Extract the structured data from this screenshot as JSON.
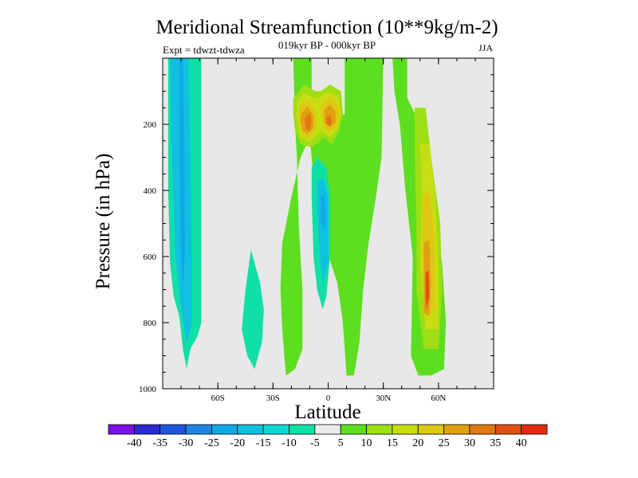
{
  "chart_data": {
    "type": "contour",
    "title": "Meridional Streamfunction (10**9kg/m-2)",
    "subtitle": "019kyr BP - 000kyr BP",
    "experiment": "Expt = tdwzt-tdwza",
    "season": "JJA",
    "xlabel": "Latitude",
    "ylabel": "Pressure (in hPa)",
    "xlim": [
      -90,
      90
    ],
    "ylim": [
      1000,
      0
    ],
    "x_ticks": [
      {
        "value": -60,
        "label": "60S"
      },
      {
        "value": -30,
        "label": "30S"
      },
      {
        "value": 0,
        "label": "0"
      },
      {
        "value": 30,
        "label": "30N"
      },
      {
        "value": 60,
        "label": "60N"
      }
    ],
    "y_ticks": [
      {
        "value": 200,
        "label": "200"
      },
      {
        "value": 400,
        "label": "400"
      },
      {
        "value": 600,
        "label": "600"
      },
      {
        "value": 800,
        "label": "800"
      },
      {
        "value": 1000,
        "label": "1000"
      }
    ],
    "background_color": "#e8e8e8",
    "colorbar": {
      "labels": [
        "-40",
        "-35",
        "-30",
        "-25",
        "-20",
        "-15",
        "-10",
        "-5",
        "5",
        "10",
        "15",
        "20",
        "25",
        "30",
        "35",
        "40"
      ],
      "colors": [
        "#7a12e8",
        "#2a2ad2",
        "#1f55e0",
        "#1f85e0",
        "#12a8e6",
        "#10c0e0",
        "#10d6d2",
        "#10e0a8",
        "#ececec",
        "#5ede20",
        "#9ede14",
        "#c8de12",
        "#e0c812",
        "#e0a012",
        "#e07812",
        "#e05012",
        "#e02a12"
      ]
    },
    "contours": [
      {
        "level": -10,
        "color": "#10e0a8",
        "points": [
          [
            -87,
            0
          ],
          [
            -69,
            0
          ],
          [
            -69,
            800
          ],
          [
            -71,
            840
          ],
          [
            -75,
            880
          ],
          [
            -77,
            940
          ],
          [
            -79,
            880
          ],
          [
            -81,
            780
          ],
          [
            -84,
            720
          ],
          [
            -86,
            620
          ],
          [
            -87,
            400
          ]
        ]
      },
      {
        "level": -15,
        "color": "#10c0e0",
        "points": [
          [
            -86,
            0
          ],
          [
            -76,
            0
          ],
          [
            -75,
            300
          ],
          [
            -74,
            600
          ],
          [
            -74,
            800
          ],
          [
            -77,
            860
          ],
          [
            -80,
            760
          ],
          [
            -83,
            600
          ],
          [
            -85,
            300
          ]
        ]
      },
      {
        "level": -20,
        "color": "#12a8e6",
        "points": [
          [
            -81,
            0
          ],
          [
            -79,
            0
          ],
          [
            -78,
            300
          ],
          [
            -78,
            600
          ],
          [
            -79,
            700
          ],
          [
            -80,
            600
          ],
          [
            -81,
            300
          ]
        ]
      },
      {
        "level": 5,
        "color": "#5ede20",
        "points": [
          [
            -19,
            0
          ],
          [
            -9,
            0
          ],
          [
            -9,
            170
          ],
          [
            9,
            170
          ],
          [
            9,
            0
          ],
          [
            30,
            0
          ],
          [
            29,
            300
          ],
          [
            26,
            420
          ],
          [
            22,
            560
          ],
          [
            19,
            700
          ],
          [
            17,
            860
          ],
          [
            14,
            960
          ],
          [
            10,
            960
          ],
          [
            8,
            800
          ],
          [
            5,
            680
          ],
          [
            -2,
            560
          ],
          [
            -7,
            420
          ],
          [
            -10,
            240
          ],
          [
            -15,
            300
          ],
          [
            -20,
            420
          ],
          [
            -25,
            560
          ],
          [
            -26,
            700
          ],
          [
            -25,
            820
          ],
          [
            -23,
            960
          ],
          [
            -18,
            940
          ],
          [
            -14,
            880
          ],
          [
            -14,
            700
          ],
          [
            -16,
            500
          ],
          [
            -17,
            300
          ],
          [
            -18,
            200
          ]
        ]
      },
      {
        "level": 5,
        "color": "#5ede20",
        "points": [
          [
            35,
            0
          ],
          [
            43,
            0
          ],
          [
            43,
            120
          ],
          [
            50,
            200
          ],
          [
            55,
            420
          ],
          [
            62,
            620
          ],
          [
            64,
            800
          ],
          [
            63,
            940
          ],
          [
            56,
            960
          ],
          [
            49,
            960
          ],
          [
            45,
            900
          ],
          [
            46,
            600
          ],
          [
            42,
            400
          ],
          [
            39,
            200
          ],
          [
            36,
            100
          ]
        ]
      },
      {
        "level": 10,
        "color": "#9ede14",
        "points": [
          [
            47,
            150
          ],
          [
            53,
            150
          ],
          [
            56,
            300
          ],
          [
            61,
            500
          ],
          [
            62,
            700
          ],
          [
            60,
            880
          ],
          [
            52,
            880
          ],
          [
            48,
            700
          ],
          [
            48,
            500
          ],
          [
            47,
            300
          ]
        ]
      },
      {
        "level": 10,
        "color": "#9ede14",
        "points": [
          [
            -19,
            120
          ],
          [
            -13,
            80
          ],
          [
            -7,
            100
          ],
          [
            -4,
            100
          ],
          [
            1,
            80
          ],
          [
            7,
            100
          ],
          [
            8,
            170
          ],
          [
            6,
            220
          ],
          [
            2,
            260
          ],
          [
            -2,
            240
          ],
          [
            -9,
            270
          ],
          [
            -15,
            260
          ],
          [
            -18,
            220
          ],
          [
            -19,
            170
          ]
        ]
      },
      {
        "level": 15,
        "color": "#c8de12",
        "points": [
          [
            -17,
            130
          ],
          [
            -13,
            105
          ],
          [
            -8,
            120
          ],
          [
            -5,
            120
          ],
          [
            0,
            100
          ],
          [
            6,
            120
          ],
          [
            7,
            170
          ],
          [
            5,
            215
          ],
          [
            1,
            240
          ],
          [
            -4,
            220
          ],
          [
            -10,
            255
          ],
          [
            -15,
            240
          ],
          [
            -17,
            180
          ]
        ]
      },
      {
        "level": 15,
        "color": "#c8de12",
        "points": [
          [
            50,
            260
          ],
          [
            55,
            260
          ],
          [
            58,
            400
          ],
          [
            60,
            620
          ],
          [
            60,
            820
          ],
          [
            53,
            820
          ],
          [
            50,
            620
          ],
          [
            51,
            400
          ]
        ]
      },
      {
        "level": 20,
        "color": "#e0c812",
        "points": [
          [
            -16,
            150
          ],
          [
            -11,
            125
          ],
          [
            -7,
            160
          ],
          [
            -6,
            200
          ],
          [
            -10,
            240
          ],
          [
            -14,
            235
          ],
          [
            -16,
            190
          ]
        ]
      },
      {
        "level": 20,
        "color": "#e0c812",
        "points": [
          [
            -4,
            140
          ],
          [
            1,
            115
          ],
          [
            5,
            140
          ],
          [
            6,
            175
          ],
          [
            4,
            210
          ],
          [
            0,
            225
          ],
          [
            -3,
            200
          ]
        ]
      },
      {
        "level": 20,
        "color": "#e0c812",
        "points": [
          [
            51,
            420
          ],
          [
            55,
            400
          ],
          [
            58,
            540
          ],
          [
            58,
            760
          ],
          [
            52,
            780
          ],
          [
            51,
            600
          ]
        ]
      },
      {
        "level": 25,
        "color": "#e0a012",
        "points": [
          [
            -15,
            170
          ],
          [
            -11,
            145
          ],
          [
            -8,
            175
          ],
          [
            -8,
            210
          ],
          [
            -11,
            230
          ],
          [
            -14,
            220
          ],
          [
            -15,
            195
          ]
        ]
      },
      {
        "level": 25,
        "color": "#e0a012",
        "points": [
          [
            -2,
            155
          ],
          [
            1,
            140
          ],
          [
            4,
            160
          ],
          [
            4,
            195
          ],
          [
            1,
            210
          ],
          [
            -2,
            195
          ]
        ]
      },
      {
        "level": 25,
        "color": "#e0a012",
        "points": [
          [
            52,
            560
          ],
          [
            55,
            550
          ],
          [
            56,
            680
          ],
          [
            55,
            780
          ],
          [
            52,
            770
          ]
        ]
      },
      {
        "level": 30,
        "color": "#e07812",
        "points": [
          [
            -13,
            185
          ],
          [
            -10,
            165
          ],
          [
            -9,
            195
          ],
          [
            -10,
            220
          ],
          [
            -12,
            215
          ]
        ]
      },
      {
        "level": 30,
        "color": "#e07812",
        "points": [
          [
            -1,
            180
          ],
          [
            1,
            170
          ],
          [
            2,
            190
          ],
          [
            1,
            205
          ],
          [
            -1,
            200
          ]
        ]
      },
      {
        "level": 35,
        "color": "#e05012",
        "points": [
          [
            53,
            650
          ],
          [
            54.5,
            640
          ],
          [
            55,
            720
          ],
          [
            53.5,
            760
          ],
          [
            53,
            720
          ]
        ]
      },
      {
        "level": -5,
        "color": "#10e0a8",
        "points": [
          [
            -9,
            330
          ],
          [
            -6,
            300
          ],
          [
            -1,
            330
          ],
          [
            1,
            410
          ],
          [
            1,
            600
          ],
          [
            -1,
            720
          ],
          [
            -3,
            760
          ],
          [
            -6,
            700
          ],
          [
            -8,
            600
          ],
          [
            -9,
            420
          ]
        ]
      },
      {
        "level": -10,
        "color": "#10c0e0",
        "points": [
          [
            -6,
            380
          ],
          [
            -3,
            360
          ],
          [
            0,
            420
          ],
          [
            0,
            620
          ],
          [
            -3,
            680
          ],
          [
            -5,
            560
          ],
          [
            -6,
            460
          ]
        ]
      },
      {
        "level": -15,
        "color": "#12a8e6",
        "points": [
          [
            -4,
            420
          ],
          [
            -2,
            410
          ],
          [
            -1,
            480
          ],
          [
            -2,
            520
          ],
          [
            -4,
            500
          ]
        ]
      },
      {
        "level": -5,
        "color": "#10e0a8",
        "points": [
          [
            -42,
            580
          ],
          [
            -37,
            680
          ],
          [
            -35,
            760
          ],
          [
            -36,
            860
          ],
          [
            -40,
            940
          ],
          [
            -44,
            900
          ],
          [
            -47,
            820
          ],
          [
            -45,
            700
          ]
        ]
      }
    ]
  }
}
